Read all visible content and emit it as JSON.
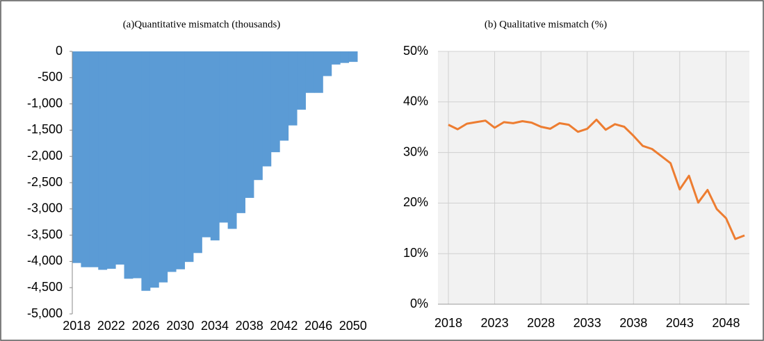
{
  "chart_data": [
    {
      "type": "bar",
      "title": "(a)Quantitative mismatch (thousands)",
      "color": "#5b9bd5",
      "categories": [
        "2018",
        null,
        null,
        null,
        "2022",
        null,
        null,
        null,
        "2026",
        null,
        null,
        null,
        "2030",
        null,
        null,
        null,
        "2034",
        null,
        null,
        null,
        "2038",
        null,
        null,
        null,
        "2042",
        null,
        null,
        null,
        "2046",
        null,
        null,
        null,
        "2050"
      ],
      "values": [
        -4030,
        -4110,
        -4110,
        -4160,
        -4140,
        -4060,
        -4330,
        -4320,
        -4560,
        -4500,
        -4400,
        -4200,
        -4150,
        -4010,
        -3840,
        -3540,
        -3600,
        -3260,
        -3380,
        -3080,
        -2790,
        -2450,
        -2190,
        -1920,
        -1700,
        -1410,
        -1110,
        -790,
        -790,
        -470,
        -250,
        -220,
        -200
      ],
      "ylim": [
        -5000,
        0
      ],
      "yticks": [
        {
          "value": -5000,
          "label": "-5,000"
        },
        {
          "value": -4500,
          "label": "-4,500"
        },
        {
          "value": -4000,
          "label": "-4,000"
        },
        {
          "value": -3500,
          "label": "-3,500"
        },
        {
          "value": -3000,
          "label": "-3,000"
        },
        {
          "value": -2500,
          "label": "-2,500"
        },
        {
          "value": -2000,
          "label": "-2,000"
        },
        {
          "value": -1500,
          "label": "-1,500"
        },
        {
          "value": -1000,
          "label": "-1,000"
        },
        -500,
        0
      ],
      "grid": false
    },
    {
      "type": "line",
      "title": "(b) Qualitative mismatch (%)",
      "color": "#ed7d31",
      "categories": [
        "2018",
        null,
        null,
        null,
        null,
        "2023",
        null,
        null,
        null,
        null,
        "2028",
        null,
        null,
        null,
        null,
        "2033",
        null,
        null,
        null,
        null,
        "2038",
        null,
        null,
        null,
        null,
        "2043",
        null,
        null,
        null,
        null,
        "2048",
        null,
        null
      ],
      "values": [
        35.5,
        34.6,
        35.7,
        36.0,
        36.3,
        34.9,
        36.0,
        35.8,
        36.2,
        35.9,
        35.1,
        34.7,
        35.8,
        35.5,
        34.1,
        34.7,
        36.5,
        34.5,
        35.6,
        35.1,
        33.3,
        31.3,
        30.7,
        29.3,
        27.9,
        22.7,
        25.4,
        20.1,
        22.6,
        18.8,
        17.0,
        12.9,
        13.6
      ],
      "ylim": [
        0,
        50
      ],
      "yticks": [
        {
          "value": 0,
          "label": "0%"
        },
        {
          "value": 10,
          "label": "10%"
        },
        {
          "value": 20,
          "label": "20%"
        },
        {
          "value": 30,
          "label": "30%"
        },
        {
          "value": 40,
          "label": "40%"
        },
        {
          "value": 50,
          "label": "50%"
        }
      ],
      "grid": true
    }
  ]
}
